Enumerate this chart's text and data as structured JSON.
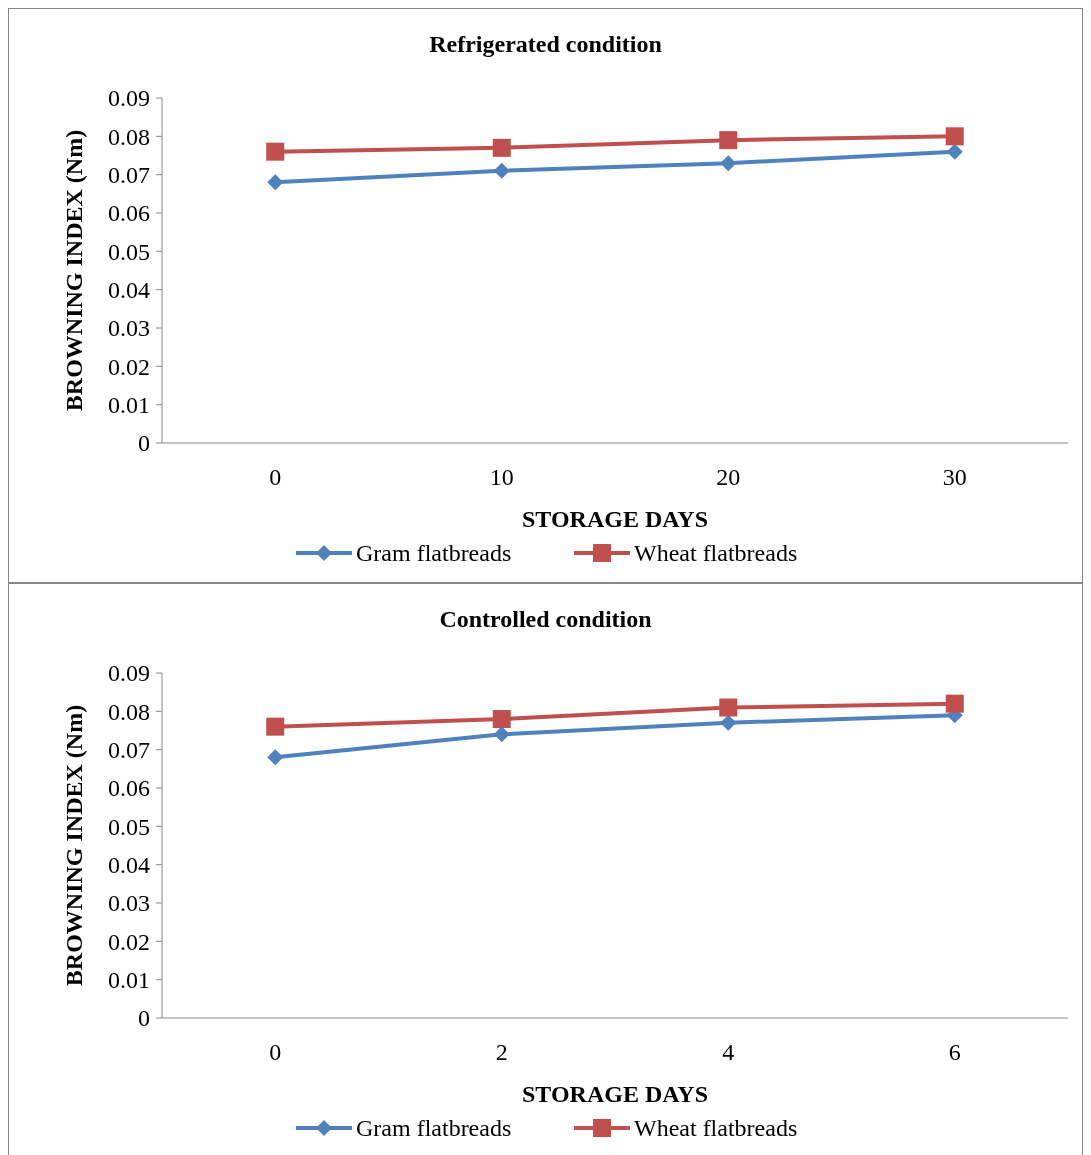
{
  "chart_data": [
    {
      "type": "line",
      "title": "Refrigerated condition",
      "xlabel": "STORAGE DAYS",
      "ylabel": "BROWNING INDEX (Nm)",
      "categories": [
        "0",
        "10",
        "20",
        "30"
      ],
      "ylim": [
        0,
        0.09
      ],
      "yticks": [
        0,
        0.01,
        0.02,
        0.03,
        0.04,
        0.05,
        0.06,
        0.07,
        0.08,
        0.09
      ],
      "grid": false,
      "legend": "bottom",
      "series": [
        {
          "name": "Gram flatbreads",
          "color": "#4f81bd",
          "marker": "diamond",
          "values": [
            0.068,
            0.071,
            0.073,
            0.076
          ]
        },
        {
          "name": "Wheat flatbreads",
          "color": "#c0504d",
          "marker": "square",
          "values": [
            0.076,
            0.077,
            0.079,
            0.08
          ]
        }
      ]
    },
    {
      "type": "line",
      "title": "Controlled condition",
      "xlabel": "STORAGE DAYS",
      "ylabel": "BROWNING INDEX (Nm)",
      "categories": [
        "0",
        "2",
        "4",
        "6"
      ],
      "ylim": [
        0,
        0.09
      ],
      "yticks": [
        0,
        0.01,
        0.02,
        0.03,
        0.04,
        0.05,
        0.06,
        0.07,
        0.08,
        0.09
      ],
      "grid": false,
      "legend": "bottom",
      "series": [
        {
          "name": "Gram flatbreads",
          "color": "#4f81bd",
          "marker": "diamond",
          "values": [
            0.068,
            0.074,
            0.077,
            0.079
          ]
        },
        {
          "name": "Wheat flatbreads",
          "color": "#c0504d",
          "marker": "square",
          "values": [
            0.076,
            0.078,
            0.081,
            0.082
          ]
        }
      ]
    }
  ]
}
